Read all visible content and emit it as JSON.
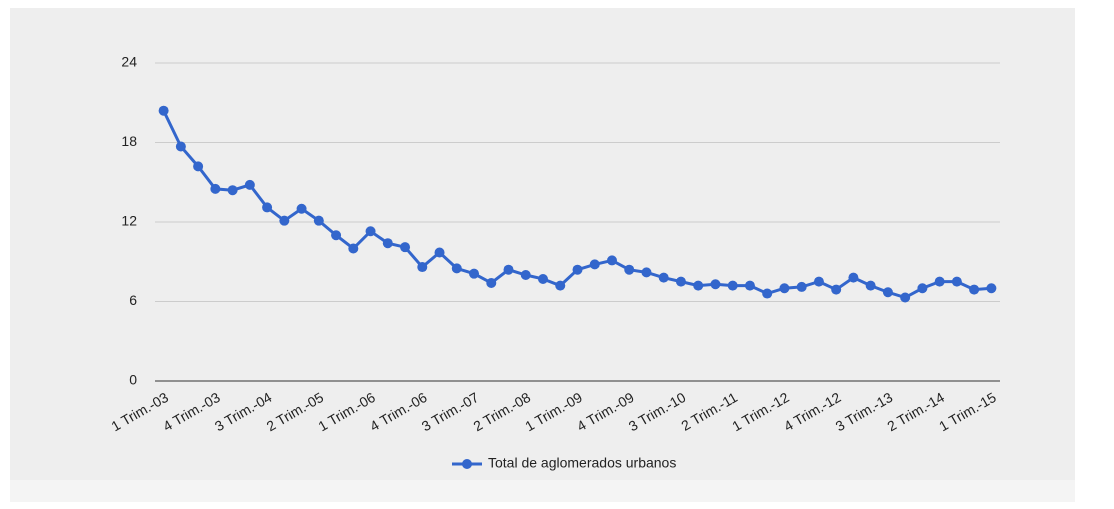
{
  "chart_data": {
    "type": "line",
    "categories": [
      "1 Trim.-03",
      null,
      null,
      "4 Trim.-03",
      null,
      null,
      "3 Trim.-04",
      null,
      null,
      "2 Trim.-05",
      null,
      null,
      "1 Trim.-06",
      null,
      null,
      "4 Trim.-06",
      null,
      null,
      "3 Trim.-07",
      null,
      null,
      "2 Trim.-08",
      null,
      null,
      "1 Trim.-09",
      null,
      null,
      "4 Trim.-09",
      null,
      null,
      "3 Trim.-10",
      null,
      null,
      "2 Trim.-11",
      null,
      null,
      "1 Trim.-12",
      null,
      null,
      "4 Trim.-12",
      null,
      null,
      "3 Trim.-13",
      null,
      null,
      "2 Trim.-14",
      null,
      null,
      "1 Trim.-15"
    ],
    "series": [
      {
        "name": "Total de aglomerados urbanos",
        "color": "#3366cc",
        "values": [
          20.4,
          17.7,
          16.2,
          14.5,
          14.4,
          14.8,
          13.1,
          12.1,
          13.0,
          12.1,
          11.0,
          10.0,
          11.3,
          10.4,
          10.1,
          8.6,
          9.7,
          8.5,
          8.1,
          7.4,
          8.4,
          8.0,
          7.7,
          7.2,
          8.4,
          8.8,
          9.1,
          8.4,
          8.2,
          7.8,
          7.5,
          7.2,
          7.3,
          7.2,
          7.2,
          6.6,
          7.0,
          7.1,
          7.5,
          6.9,
          7.8,
          7.2,
          6.7,
          6.3,
          7.0,
          7.5,
          7.5,
          6.9,
          7.0
        ]
      }
    ],
    "ylim": [
      0,
      24
    ],
    "yticks": [
      0,
      6,
      12,
      18,
      24
    ],
    "grid": true,
    "legend": "bottom"
  }
}
